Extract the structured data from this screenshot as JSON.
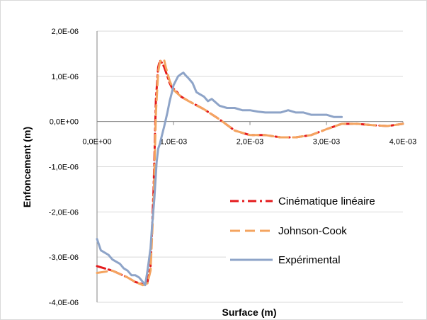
{
  "chart_data": {
    "type": "line",
    "title": "",
    "xlabel": "Surface (m)",
    "ylabel": "Enfoncement (m)",
    "xlim": [
      0,
      0.004
    ],
    "ylim": [
      -4e-06,
      2e-06
    ],
    "xticks": [
      {
        "value": 0,
        "label": "0,0E+00"
      },
      {
        "value": 0.001,
        "label": "1,0E-03"
      },
      {
        "value": 0.002,
        "label": "2,0E-03"
      },
      {
        "value": 0.003,
        "label": "3,0E-03"
      },
      {
        "value": 0.004,
        "label": "4,0E-03"
      }
    ],
    "yticks": [
      {
        "value": 2e-06,
        "label": "2,0E-06"
      },
      {
        "value": 1e-06,
        "label": "1,0E-06"
      },
      {
        "value": 0,
        "label": "0,0E+00"
      },
      {
        "value": -1e-06,
        "label": "-1,0E-06"
      },
      {
        "value": -2e-06,
        "label": "-2,0E-06"
      },
      {
        "value": -3e-06,
        "label": "-3,0E-06"
      },
      {
        "value": -4e-06,
        "label": "-4,0E-06"
      }
    ],
    "grid": true,
    "legend_position": "right",
    "series": [
      {
        "name": "Cinématique linéaire",
        "color": "#e41a1c",
        "style": "dash-dot",
        "x": [
          0,
          0.0002,
          0.0004,
          0.0005,
          0.0006,
          0.00066,
          0.0007,
          0.00074,
          0.00077,
          0.0008,
          0.00082,
          0.00085,
          0.00088,
          0.0009,
          0.00092,
          0.00095,
          0.00098,
          0.00102,
          0.0011,
          0.0012,
          0.0014,
          0.0016,
          0.0018,
          0.002,
          0.0022,
          0.0024,
          0.0026,
          0.0028,
          0.003,
          0.0032,
          0.0034,
          0.0036,
          0.0038,
          0.004
        ],
        "y": [
          -3.2e-06,
          -3.3e-06,
          -3.45e-06,
          -3.55e-06,
          -3.6e-06,
          -3.55e-06,
          -3.2e-06,
          -1.5e-06,
          5e-07,
          1.2e-06,
          1.35e-06,
          1.3e-06,
          1.2e-06,
          1.1e-06,
          1e-06,
          8.5e-07,
          7.5e-07,
          7e-07,
          5.5e-07,
          4.5e-07,
          2.7e-07,
          5e-08,
          -2e-07,
          -3e-07,
          -3e-07,
          -3.5e-07,
          -3.5e-07,
          -3e-07,
          -1.7e-07,
          -5e-08,
          -5e-08,
          -8e-08,
          -1e-07,
          -5e-08
        ]
      },
      {
        "name": "Johnson-Cook",
        "color": "#f4a460",
        "style": "dash",
        "x": [
          0,
          0.0002,
          0.0004,
          0.0005,
          0.0006,
          0.00066,
          0.0007,
          0.00074,
          0.00077,
          0.0008,
          0.00082,
          0.00085,
          0.00088,
          0.0009,
          0.00095,
          0.001,
          0.0011,
          0.0012,
          0.0014,
          0.0016,
          0.0018,
          0.002,
          0.0022,
          0.0024,
          0.0026,
          0.0028,
          0.003,
          0.0032,
          0.0034,
          0.0036,
          0.0038,
          0.004
        ],
        "y": [
          -3.35e-06,
          -3.3e-06,
          -3.45e-06,
          -3.55e-06,
          -3.62e-06,
          -3.58e-06,
          -3.3e-06,
          -1.8e-06,
          2e-07,
          1.1e-06,
          1.3e-06,
          1.38e-06,
          1.35e-06,
          1.2e-06,
          9e-07,
          7e-07,
          5.5e-07,
          4.5e-07,
          2.7e-07,
          5e-08,
          -2e-07,
          -3e-07,
          -3e-07,
          -3.5e-07,
          -3.5e-07,
          -3e-07,
          -1.7e-07,
          -5e-08,
          -5e-08,
          -8e-08,
          -1e-07,
          -5e-08
        ]
      },
      {
        "name": "Expérimental",
        "color": "#8ea4c8",
        "style": "solid",
        "x": [
          0,
          2e-05,
          5e-05,
          0.0001,
          0.00015,
          0.0002,
          0.00025,
          0.0003,
          0.00035,
          0.0004,
          0.00045,
          0.0005,
          0.00055,
          0.0006,
          0.00063,
          0.00066,
          0.0007,
          0.00072,
          0.00075,
          0.00078,
          0.0008,
          0.00082,
          0.00085,
          0.00088,
          0.0009,
          0.00092,
          0.00095,
          0.00098,
          0.001,
          0.00103,
          0.00106,
          0.0011,
          0.00113,
          0.00116,
          0.0012,
          0.00125,
          0.0013,
          0.00135,
          0.0014,
          0.00145,
          0.0015,
          0.0016,
          0.0017,
          0.0018,
          0.0019,
          0.002,
          0.0021,
          0.0022,
          0.0023,
          0.0024,
          0.0025,
          0.0026,
          0.0027,
          0.0028,
          0.0029,
          0.003,
          0.0031,
          0.0032
        ],
        "y": [
          -2.6e-06,
          -2.7e-06,
          -2.85e-06,
          -2.9e-06,
          -2.95e-06,
          -3.05e-06,
          -3.1e-06,
          -3.15e-06,
          -3.25e-06,
          -3.3e-06,
          -3.4e-06,
          -3.4e-06,
          -3.45e-06,
          -3.55e-06,
          -3.62e-06,
          -3.3e-06,
          -2.8e-06,
          -2.3e-06,
          -1.7e-06,
          -9e-07,
          -6e-07,
          -5e-07,
          -3e-07,
          -1e-07,
          5e-08,
          2e-07,
          4.5e-07,
          6.5e-07,
          8e-07,
          9e-07,
          1e-06,
          1.05e-06,
          1.08e-06,
          1.02e-06,
          9.5e-07,
          8.5e-07,
          6.5e-07,
          6e-07,
          5.5e-07,
          4.5e-07,
          5e-07,
          3.5e-07,
          3e-07,
          3e-07,
          2.5e-07,
          2.5e-07,
          2.2e-07,
          2e-07,
          2e-07,
          2e-07,
          2.5e-07,
          2e-07,
          2e-07,
          1.5e-07,
          1.5e-07,
          1.5e-07,
          1e-07,
          1e-07
        ]
      }
    ]
  }
}
